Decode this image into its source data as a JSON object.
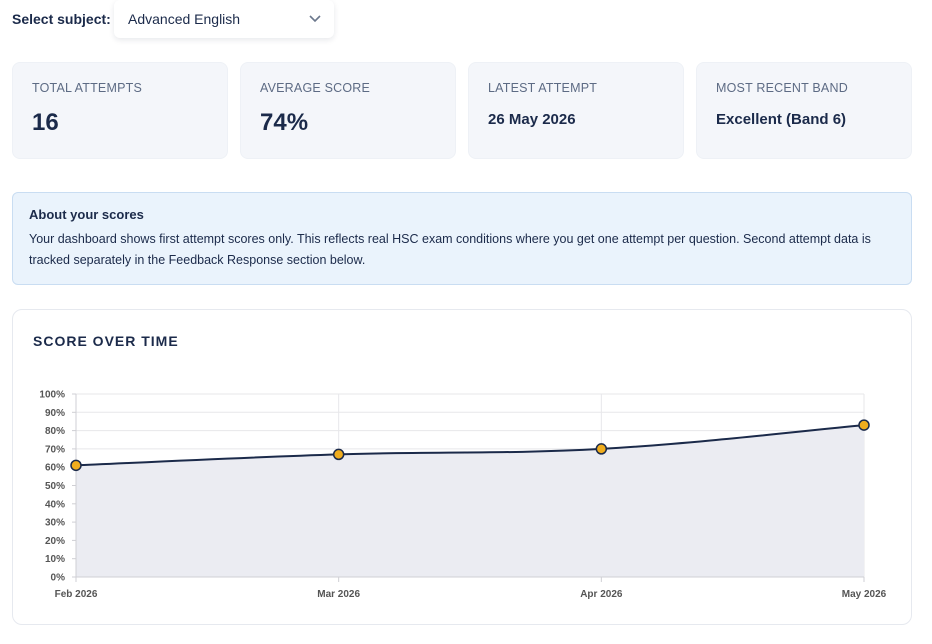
{
  "subject": {
    "label": "Select subject:",
    "selected": "Advanced English",
    "icon": "chevron-down-icon"
  },
  "stats": [
    {
      "label": "Total Attempts",
      "value": "16",
      "size": "big"
    },
    {
      "label": "Average Score",
      "value": "74%",
      "size": "big"
    },
    {
      "label": "Latest Attempt",
      "value": "26 May 2026",
      "size": "med"
    },
    {
      "label": "Most Recent Band",
      "value": "Excellent (Band 6)",
      "size": "med"
    }
  ],
  "info": {
    "title": "About your scores",
    "body": "Your dashboard shows first attempt scores only. This reflects real HSC exam conditions where you get one attempt per question. Second attempt data is tracked separately in the Feedback Response section below."
  },
  "chart": {
    "title": "Score over time"
  },
  "chart_data": {
    "type": "area",
    "categories": [
      "Feb 2026",
      "Mar 2026",
      "Apr 2026",
      "May 2026"
    ],
    "values": [
      61,
      67,
      70,
      83
    ],
    "ylim": [
      0,
      100
    ],
    "yticks": [
      "0%",
      "10%",
      "20%",
      "30%",
      "40%",
      "50%",
      "60%",
      "70%",
      "80%",
      "90%",
      "100%"
    ],
    "line_color": "#1b2a4a",
    "fill_color": "#ebecf2",
    "point_color": "#f0ad1e",
    "grid": true
  }
}
